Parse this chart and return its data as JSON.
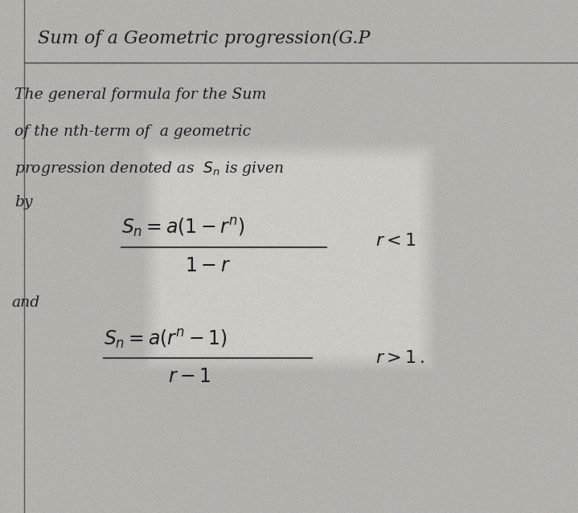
{
  "bg_color_light": "#c8c5be",
  "bg_color_dark": "#b8b5ae",
  "text_color": "#1c1c1c",
  "line_color": "#3a3a3a",
  "title": "Sum of a Geometric progression(G.P",
  "body_line1": "The general formula for the Sum",
  "body_line2": "of the nth-term of  a geometric",
  "body_line3": "progression denoted as  Sn is given",
  "body_line4": "by",
  "and_text": "and",
  "condition1": "r < 1",
  "condition2": "r > 1.",
  "fig_width": 7.19,
  "fig_height": 6.39,
  "dpi": 100
}
